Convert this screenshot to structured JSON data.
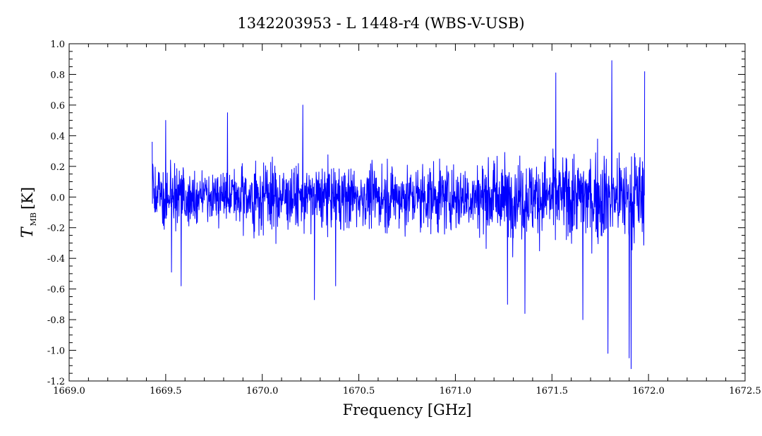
{
  "chart_data": {
    "type": "line",
    "title": "1342203953 - L 1448-r4 (WBS-V-USB)",
    "xlabel": "Frequency [GHz]",
    "ylabel": {
      "symbol": "T",
      "subscript": "MB",
      "unit": "[K]"
    },
    "xlim": [
      1669.0,
      1672.5
    ],
    "ylim": [
      -1.2,
      1.0
    ],
    "x_ticks": [
      "1669.0",
      "1669.5",
      "1670.0",
      "1670.5",
      "1671.0",
      "1671.5",
      "1672.0",
      "1672.5"
    ],
    "y_ticks": [
      "-1.2",
      "-1.0",
      "-0.8",
      "-0.6",
      "-0.4",
      "-0.2",
      "0.0",
      "0.2",
      "0.4",
      "0.6",
      "0.8",
      "1.0"
    ],
    "grid": false,
    "series": [
      {
        "color": "#0000ff",
        "x_range": [
          1669.43,
          1671.98
        ],
        "n_points": 1800,
        "noise_envelope": [
          {
            "x": 1669.45,
            "rms": 0.16
          },
          {
            "x": 1670.0,
            "rms": 0.17
          },
          {
            "x": 1670.5,
            "rms": 0.16
          },
          {
            "x": 1671.0,
            "rms": 0.18
          },
          {
            "x": 1671.5,
            "rms": 0.22
          },
          {
            "x": 1671.98,
            "rms": 0.26
          }
        ],
        "points": [
          [
            1669.43,
            0.36
          ],
          [
            1669.5,
            0.5
          ],
          [
            1669.53,
            -0.49
          ],
          [
            1669.58,
            -0.58
          ],
          [
            1669.82,
            0.55
          ],
          [
            1670.21,
            0.6
          ],
          [
            1670.27,
            -0.67
          ],
          [
            1670.38,
            -0.58
          ],
          [
            1671.27,
            -0.7
          ],
          [
            1671.36,
            -0.76
          ],
          [
            1671.52,
            0.81
          ],
          [
            1671.66,
            -0.8
          ],
          [
            1671.79,
            -1.02
          ],
          [
            1671.81,
            0.89
          ],
          [
            1671.9,
            -1.05
          ],
          [
            1671.91,
            -1.12
          ],
          [
            1671.98,
            0.82
          ]
        ]
      }
    ]
  }
}
